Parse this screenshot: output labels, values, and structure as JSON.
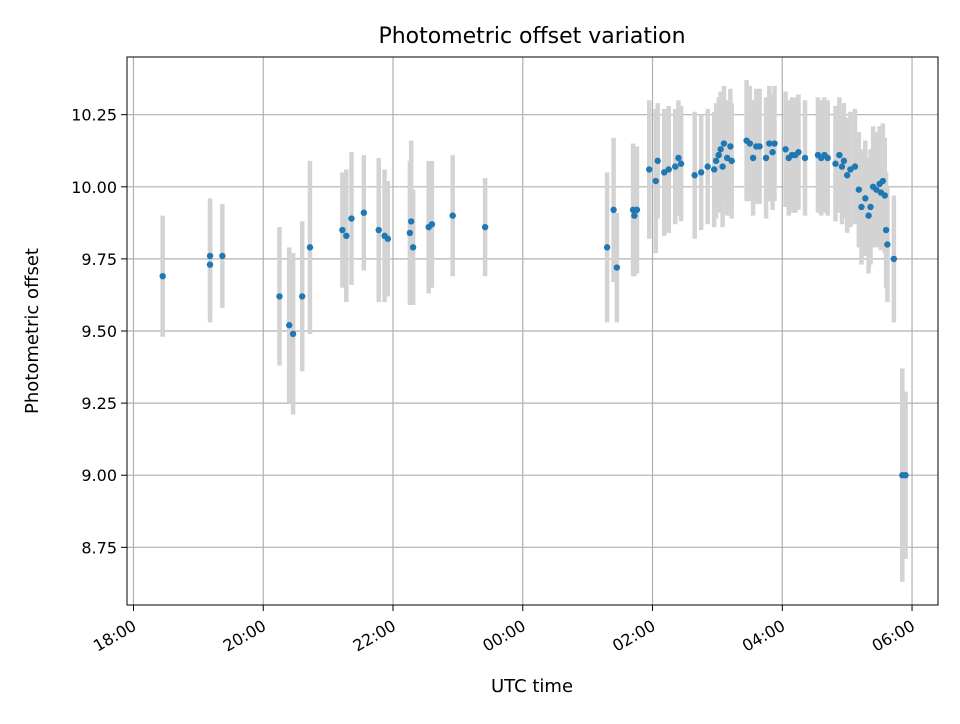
{
  "chart_data": {
    "type": "scatter",
    "title": "Photometric offset variation",
    "xlabel": "UTC time",
    "ylabel": "Photometric offset",
    "x_units": "hours since 18:00 UTC",
    "xlim": [
      -0.1,
      12.4
    ],
    "ylim": [
      8.55,
      10.45
    ],
    "grid": true,
    "x_ticks": [
      {
        "value": 0,
        "label": "18:00"
      },
      {
        "value": 2,
        "label": "20:00"
      },
      {
        "value": 4,
        "label": "22:00"
      },
      {
        "value": 6,
        "label": "00:00"
      },
      {
        "value": 8,
        "label": "02:00"
      },
      {
        "value": 10,
        "label": "04:00"
      },
      {
        "value": 12,
        "label": "06:00"
      }
    ],
    "y_ticks": [
      {
        "value": 8.75,
        "label": "8.75"
      },
      {
        "value": 9.0,
        "label": "9.00"
      },
      {
        "value": 9.25,
        "label": "9.25"
      },
      {
        "value": 9.5,
        "label": "9.50"
      },
      {
        "value": 9.75,
        "label": "9.75"
      },
      {
        "value": 10.0,
        "label": "10.00"
      },
      {
        "value": 10.25,
        "label": "10.25"
      }
    ],
    "colors": {
      "point": "#1f77b4",
      "errorbar": "#d3d3d3",
      "grid": "#b0b0b0"
    },
    "series": [
      {
        "points": [
          [
            0.45,
            9.69,
            0.21
          ],
          [
            1.18,
            9.76,
            0.2
          ],
          [
            1.18,
            9.73,
            0.2
          ],
          [
            1.37,
            9.76,
            0.18
          ],
          [
            2.25,
            9.62,
            0.24
          ],
          [
            2.4,
            9.52,
            0.27
          ],
          [
            2.46,
            9.49,
            0.28
          ],
          [
            2.6,
            9.62,
            0.26
          ],
          [
            2.72,
            9.79,
            0.3
          ],
          [
            3.22,
            9.85,
            0.2
          ],
          [
            3.28,
            9.83,
            0.23
          ],
          [
            3.36,
            9.89,
            0.23
          ],
          [
            3.55,
            9.91,
            0.2
          ],
          [
            3.78,
            9.85,
            0.25
          ],
          [
            3.87,
            9.83,
            0.23
          ],
          [
            3.92,
            9.82,
            0.2
          ],
          [
            4.26,
            9.84,
            0.25
          ],
          [
            4.28,
            9.88,
            0.28
          ],
          [
            4.31,
            9.79,
            0.2
          ],
          [
            4.55,
            9.86,
            0.23
          ],
          [
            4.6,
            9.87,
            0.22
          ],
          [
            4.92,
            9.9,
            0.21
          ],
          [
            5.42,
            9.86,
            0.17
          ],
          [
            7.3,
            9.79,
            0.26
          ],
          [
            7.4,
            9.92,
            0.25
          ],
          [
            7.45,
            9.72,
            0.19
          ],
          [
            7.7,
            9.92,
            0.23
          ],
          [
            7.72,
            9.9,
            0.21
          ],
          [
            7.76,
            9.92,
            0.22
          ],
          [
            7.95,
            10.06,
            0.24
          ],
          [
            8.05,
            10.02,
            0.25
          ],
          [
            8.08,
            10.09,
            0.2
          ],
          [
            8.18,
            10.05,
            0.22
          ],
          [
            8.25,
            10.06,
            0.22
          ],
          [
            8.35,
            10.07,
            0.2
          ],
          [
            8.4,
            10.1,
            0.2
          ],
          [
            8.44,
            10.08,
            0.2
          ],
          [
            8.65,
            10.04,
            0.22
          ],
          [
            8.75,
            10.05,
            0.2
          ],
          [
            8.85,
            10.07,
            0.2
          ],
          [
            8.95,
            10.06,
            0.2
          ],
          [
            8.98,
            10.09,
            0.2
          ],
          [
            9.02,
            10.11,
            0.2
          ],
          [
            9.05,
            10.13,
            0.2
          ],
          [
            9.08,
            10.07,
            0.21
          ],
          [
            9.1,
            10.15,
            0.2
          ],
          [
            9.15,
            10.1,
            0.2
          ],
          [
            9.2,
            10.14,
            0.2
          ],
          [
            9.22,
            10.09,
            0.2
          ],
          [
            9.45,
            10.16,
            0.21
          ],
          [
            9.5,
            10.15,
            0.2
          ],
          [
            9.55,
            10.1,
            0.2
          ],
          [
            9.6,
            10.14,
            0.2
          ],
          [
            9.65,
            10.14,
            0.2
          ],
          [
            9.75,
            10.1,
            0.21
          ],
          [
            9.8,
            10.15,
            0.2
          ],
          [
            9.85,
            10.12,
            0.2
          ],
          [
            9.88,
            10.15,
            0.2
          ],
          [
            10.05,
            10.13,
            0.2
          ],
          [
            10.1,
            10.1,
            0.2
          ],
          [
            10.15,
            10.11,
            0.2
          ],
          [
            10.2,
            10.11,
            0.2
          ],
          [
            10.25,
            10.12,
            0.2
          ],
          [
            10.35,
            10.1,
            0.2
          ],
          [
            10.55,
            10.11,
            0.2
          ],
          [
            10.6,
            10.1,
            0.2
          ],
          [
            10.65,
            10.11,
            0.2
          ],
          [
            10.7,
            10.1,
            0.2
          ],
          [
            10.82,
            10.08,
            0.2
          ],
          [
            10.88,
            10.11,
            0.2
          ],
          [
            10.92,
            10.07,
            0.2
          ],
          [
            10.95,
            10.09,
            0.2
          ],
          [
            11.0,
            10.04,
            0.2
          ],
          [
            11.05,
            10.06,
            0.2
          ],
          [
            11.12,
            10.07,
            0.2
          ],
          [
            11.18,
            9.99,
            0.2
          ],
          [
            11.22,
            9.93,
            0.2
          ],
          [
            11.28,
            9.96,
            0.2
          ],
          [
            11.33,
            9.9,
            0.2
          ],
          [
            11.36,
            9.93,
            0.2
          ],
          [
            11.4,
            10.0,
            0.21
          ],
          [
            11.45,
            9.99,
            0.2
          ],
          [
            11.5,
            10.01,
            0.2
          ],
          [
            11.55,
            10.02,
            0.2
          ],
          [
            11.52,
            9.98,
            0.2
          ],
          [
            11.58,
            9.97,
            0.2
          ],
          [
            11.6,
            9.85,
            0.2
          ],
          [
            11.62,
            9.8,
            0.2
          ],
          [
            11.72,
            9.75,
            0.22
          ],
          [
            11.85,
            9.0,
            0.37
          ],
          [
            11.9,
            9.0,
            0.29
          ]
        ]
      }
    ]
  }
}
